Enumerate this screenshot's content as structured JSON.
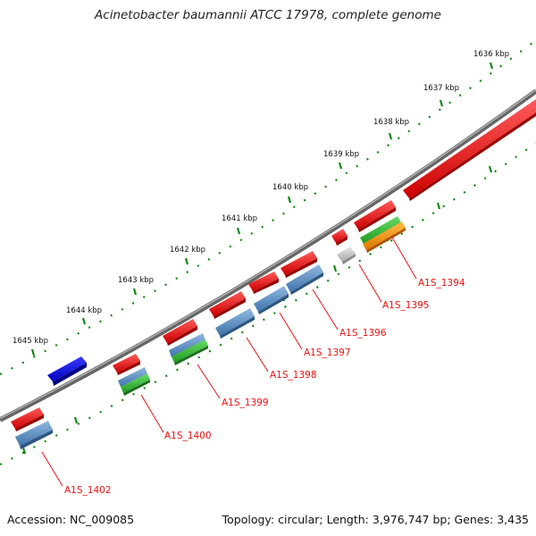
{
  "title": "Acinetobacter baumannii ATCC 17978, complete genome",
  "footer": {
    "accession": "Accession: NC_009085",
    "summary": "Topology: circular; Length: 3,976,747 bp; Genes: 3,435"
  },
  "colors": {
    "forward_cds": "#ee1111",
    "reverse_cds": "#5b8ec4",
    "blue_feature": "#1010ee",
    "green_feature": "#33bb33",
    "orange_feature": "#ff9900",
    "grey_feature": "#cccccc",
    "backbone": "#888888",
    "tick_dots": "#118811",
    "label_color": "#ee1111"
  },
  "scale_labels": [
    "1636 kbp",
    "1637 kbp",
    "1638 kbp",
    "1639 kbp",
    "1640 kbp",
    "1641 kbp",
    "1642 kbp",
    "1643 kbp",
    "1644 kbp",
    "1645 kbp"
  ],
  "gene_labels": [
    "A1S_1394",
    "A1S_1395",
    "A1S_1396",
    "A1S_1397",
    "A1S_1398",
    "A1S_1399",
    "A1S_1400",
    "A1S_1402"
  ]
}
